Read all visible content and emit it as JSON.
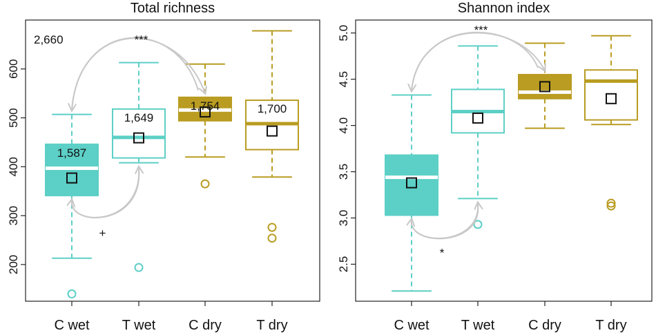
{
  "colors": {
    "wet": "#5ccfc6",
    "dry": "#b99c21",
    "arrow": "#c8c8c8",
    "axis": "#222222"
  },
  "chart_data": [
    {
      "type": "boxplot",
      "title": "Total  richness",
      "corner_label": "2,660",
      "categories": [
        "C wet",
        "T wet",
        "C dry",
        "T dry"
      ],
      "ylim": [
        125,
        700
      ],
      "yticks": [
        200,
        300,
        400,
        500,
        600
      ],
      "boxes": [
        {
          "name": "C wet",
          "color": "#5ccfc6",
          "filled": true,
          "whisker_low": 213,
          "q1": 341,
          "median": 397,
          "q3": 446,
          "whisker_high": 507,
          "mean": 377,
          "outliers": [
            140
          ],
          "label": "1,587"
        },
        {
          "name": "T wet",
          "color": "#5ccfc6",
          "filled": false,
          "whisker_low": 408,
          "q1": 418,
          "median": 460,
          "q3": 518,
          "whisker_high": 613,
          "mean": 459,
          "outliers": [
            194
          ],
          "label": "1,649"
        },
        {
          "name": "C dry",
          "color": "#b99c21",
          "filled": true,
          "whisker_low": 420,
          "q1": 494,
          "median": 516,
          "q3": 542,
          "whisker_high": 610,
          "mean": 512,
          "outliers": [
            365
          ],
          "label": "1,754"
        },
        {
          "name": "T dry",
          "color": "#b99c21",
          "filled": false,
          "whisker_low": 379,
          "q1": 435,
          "median": 488,
          "q3": 536,
          "whisker_high": 678,
          "mean": 473,
          "outliers": [
            276,
            254
          ],
          "label": "1,700"
        }
      ],
      "annotations": [
        {
          "text": "***",
          "from": "C wet",
          "to": "C dry",
          "position": "top"
        },
        {
          "text": "+",
          "from": "C wet",
          "to": "T wet",
          "position": "bottom"
        }
      ]
    },
    {
      "type": "boxplot",
      "title": "Shannon index",
      "categories": [
        "C wet",
        "T wet",
        "C dry",
        "T dry"
      ],
      "ylim": [
        2.1,
        5.14
      ],
      "yticks": [
        2.5,
        3.0,
        3.5,
        4.0,
        4.5,
        5.0
      ],
      "ytick_labels": [
        "2.5",
        "3.0",
        "3.5",
        "4.0",
        "4.5",
        "5.0"
      ],
      "boxes": [
        {
          "name": "C wet",
          "color": "#5ccfc6",
          "filled": true,
          "whisker_low": 2.21,
          "q1": 3.03,
          "median": 3.44,
          "q3": 3.68,
          "whisker_high": 4.33,
          "mean": 3.38,
          "outliers": []
        },
        {
          "name": "T wet",
          "color": "#5ccfc6",
          "filled": false,
          "whisker_low": 3.21,
          "q1": 3.92,
          "median": 4.15,
          "q3": 4.39,
          "whisker_high": 4.86,
          "mean": 4.08,
          "outliers": [
            2.93
          ]
        },
        {
          "name": "C dry",
          "color": "#b99c21",
          "filled": true,
          "whisker_low": 3.97,
          "q1": 4.29,
          "median": 4.36,
          "q3": 4.55,
          "whisker_high": 4.89,
          "mean": 4.42,
          "outliers": []
        },
        {
          "name": "T dry",
          "color": "#b99c21",
          "filled": false,
          "whisker_low": 4.01,
          "q1": 4.06,
          "median": 4.48,
          "q3": 4.6,
          "whisker_high": 4.97,
          "mean": 4.29,
          "outliers": [
            3.16,
            3.13
          ]
        }
      ],
      "annotations": [
        {
          "text": "***",
          "from": "C wet",
          "to": "C dry",
          "position": "top"
        },
        {
          "text": "*",
          "from": "C wet",
          "to": "T wet",
          "position": "bottom"
        }
      ]
    }
  ]
}
